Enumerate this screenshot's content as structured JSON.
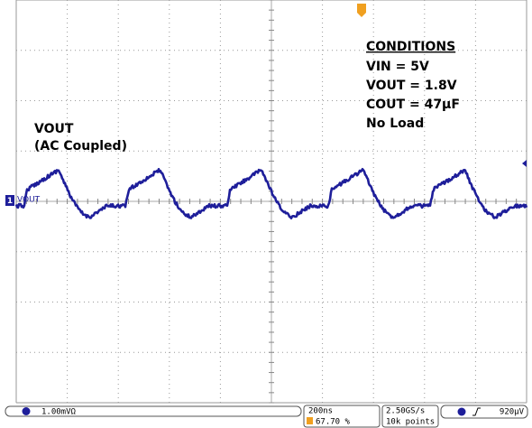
{
  "annotation": {
    "signal": "VOUT",
    "coupling": "(AC Coupled)"
  },
  "conditions": {
    "title": "CONDITIONS",
    "lines": [
      "VIN = 5V",
      "VOUT = 1.8V",
      "COUT = 47µF",
      "No Load"
    ]
  },
  "channel_marker": {
    "number": "1",
    "label": "VOUT"
  },
  "status_bar": {
    "scale": "1.00mVΩ",
    "timebase": "200ns",
    "trigger_position": "67.70 %",
    "sample_rate": "2.50GS/s",
    "record_length": "10k points",
    "trigger_level": "920µV"
  }
}
